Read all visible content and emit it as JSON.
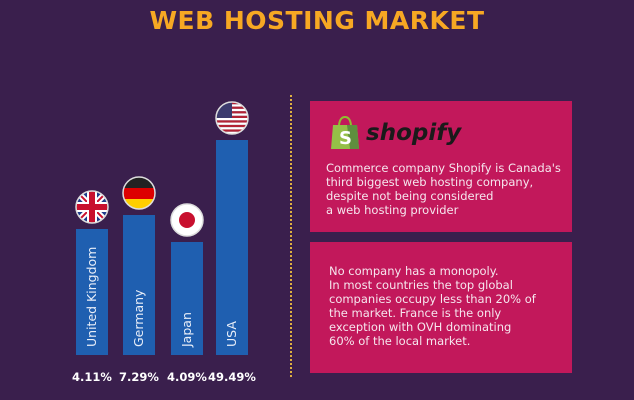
{
  "title": "WEB HOSTING MARKET",
  "chart_data": {
    "type": "bar",
    "categories": [
      "United Kingdom",
      "Germany",
      "Japan",
      "USA"
    ],
    "values": [
      4.11,
      7.29,
      4.09,
      49.49
    ],
    "value_labels": [
      "4.11%",
      "7.29%",
      "4.09%",
      "49.49%"
    ],
    "flags": [
      "uk-flag-icon",
      "germany-flag-icon",
      "japan-flag-icon",
      "usa-flag-icon"
    ],
    "bar_color": "#1f5fb0"
  },
  "shopify_box": {
    "logo_text": "shopify",
    "text": "Commerce company Shopify is Canada's third biggest web hosting company, despite not being considered a web hosting provider",
    "lines": [
      "Commerce company Shopify is Canada's",
      "third biggest web hosting company,",
      "despite not being considered",
      "a web hosting provider"
    ]
  },
  "monopoly_box": {
    "lines": [
      "No company has a monopoly.",
      "In most countries the top global",
      "companies occupy less than 20% of",
      "the market. France is the only",
      "exception with OVH dominating",
      "60% of the local market."
    ]
  },
  "colors": {
    "background": "#3a1f4d",
    "title": "#f7a823",
    "box": "#c2185b"
  }
}
